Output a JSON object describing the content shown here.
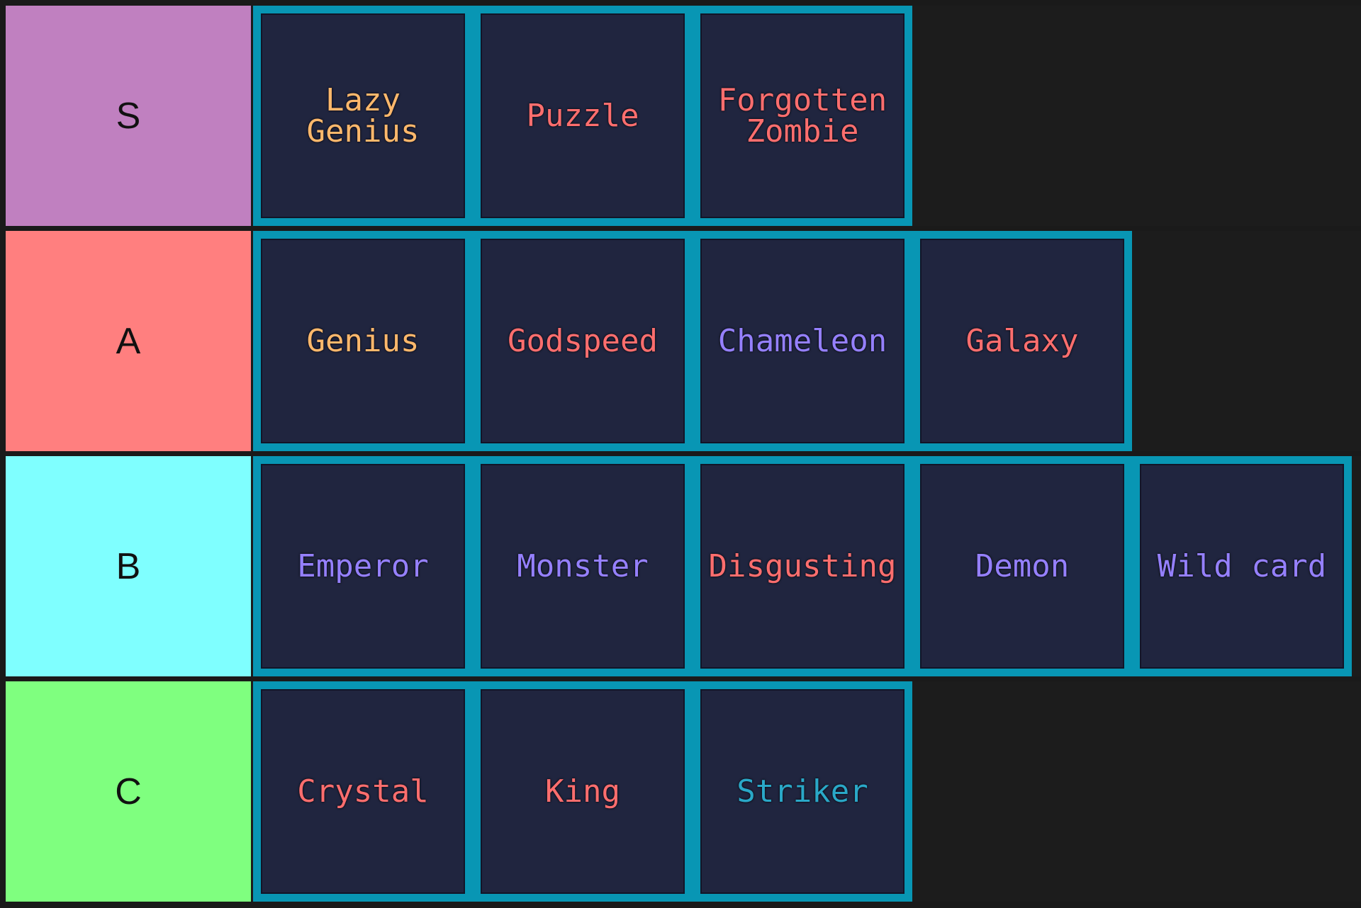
{
  "tiers": [
    {
      "label": "S",
      "color": "#c080c0",
      "items": [
        {
          "text": "Lazy\nGenius",
          "color": "#ffb86c"
        },
        {
          "text": "Puzzle",
          "color": "#ff6e6e"
        },
        {
          "text": "Forgotten\nZombie",
          "color": "#ff6e6e"
        }
      ]
    },
    {
      "label": "A",
      "color": "#ff7f7f",
      "items": [
        {
          "text": "Genius",
          "color": "#ffb86c"
        },
        {
          "text": "Godspeed",
          "color": "#ff6e6e"
        },
        {
          "text": "Chameleon",
          "color": "#9580ff"
        },
        {
          "text": "Galaxy",
          "color": "#ff6e6e"
        }
      ]
    },
    {
      "label": "B",
      "color": "#7fffff",
      "items": [
        {
          "text": "Emperor",
          "color": "#9580ff"
        },
        {
          "text": "Monster",
          "color": "#9580ff"
        },
        {
          "text": "Disgusting",
          "color": "#ff6e6e"
        },
        {
          "text": "Demon",
          "color": "#9580ff"
        },
        {
          "text": "Wild card",
          "color": "#9580ff"
        }
      ]
    },
    {
      "label": "C",
      "color": "#7fff7f",
      "items": [
        {
          "text": "Crystal",
          "color": "#ff6e6e"
        },
        {
          "text": "King",
          "color": "#ff6e6e"
        },
        {
          "text": "Striker",
          "color": "#2aa8c8"
        }
      ]
    }
  ]
}
